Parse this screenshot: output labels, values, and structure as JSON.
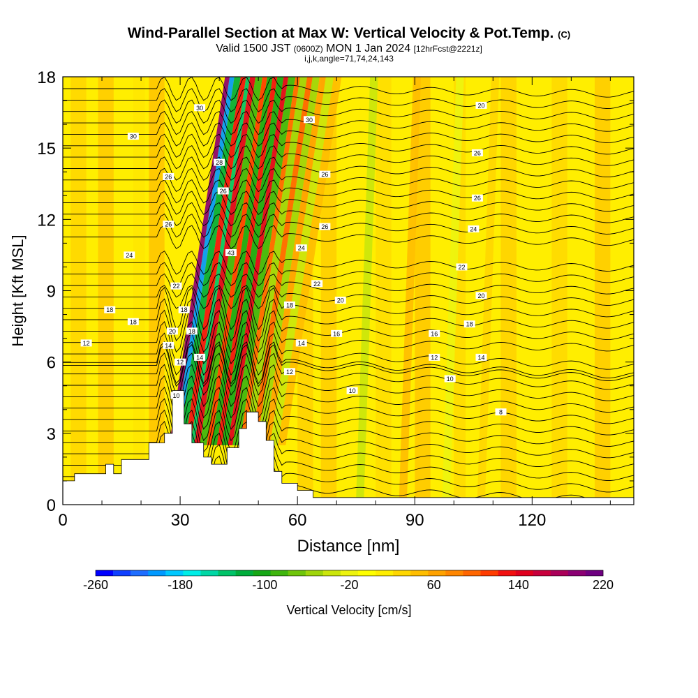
{
  "title": {
    "main": "Wind-Parallel Section at Max W: Vertical Velocity & Pot.Temp.",
    "mark": "(C)",
    "valid_a": "Valid 1500 JST",
    "valid_utc": "(0600Z)",
    "valid_b": "MON 1 Jan 2024",
    "fcst": "[12hrFcst@2221z]",
    "indices": "i,j,k,angle=71,74,24,143"
  },
  "chart_data": {
    "type": "heatmap",
    "xlabel": "Distance [nm]",
    "ylabel": "Height [Kft MSL]",
    "xlim": [
      0,
      146
    ],
    "ylim": [
      0,
      18
    ],
    "xticks": [
      0,
      30,
      60,
      90,
      120
    ],
    "yticks": [
      0,
      3,
      6,
      9,
      12,
      15,
      18
    ],
    "terrain": [
      [
        0,
        1.0
      ],
      [
        3,
        1.0
      ],
      [
        3,
        1.3
      ],
      [
        11,
        1.3
      ],
      [
        11,
        1.7
      ],
      [
        13,
        1.7
      ],
      [
        13,
        1.3
      ],
      [
        15,
        1.3
      ],
      [
        15,
        1.9
      ],
      [
        22,
        1.9
      ],
      [
        22,
        2.6
      ],
      [
        26,
        2.6
      ],
      [
        26,
        3.0
      ],
      [
        28,
        3.0
      ],
      [
        28,
        4.8
      ],
      [
        31,
        4.8
      ],
      [
        31,
        3.4
      ],
      [
        33,
        3.4
      ],
      [
        33,
        2.6
      ],
      [
        36,
        2.6
      ],
      [
        36,
        2.0
      ],
      [
        38,
        2.0
      ],
      [
        38,
        1.7
      ],
      [
        42,
        1.7
      ],
      [
        42,
        2.4
      ],
      [
        45,
        2.4
      ],
      [
        45,
        3.2
      ],
      [
        47,
        3.2
      ],
      [
        47,
        3.9
      ],
      [
        50,
        3.9
      ],
      [
        50,
        3.5
      ],
      [
        52,
        3.5
      ],
      [
        52,
        2.7
      ],
      [
        54,
        2.7
      ],
      [
        54,
        1.4
      ],
      [
        56,
        1.4
      ],
      [
        56,
        0.9
      ],
      [
        60,
        0.9
      ],
      [
        60,
        0.6
      ],
      [
        64,
        0.6
      ],
      [
        64,
        0.3
      ],
      [
        146,
        0.3
      ]
    ],
    "velocity_cells": [
      {
        "x": [
          27.2,
          28.4
        ],
        "w": 195
      },
      {
        "x": [
          28.4,
          29.6
        ],
        "w": -210
      },
      {
        "x": [
          29.6,
          31.2
        ],
        "w": -120
      },
      {
        "x": [
          31.2,
          32.6
        ],
        "w": 135
      },
      {
        "x": [
          32.6,
          33.6
        ],
        "w": -130
      },
      {
        "x": [
          33.6,
          35.0
        ],
        "w": 150
      },
      {
        "x": [
          35.0,
          36.8
        ],
        "w": -90
      },
      {
        "x": [
          36.8,
          38.0
        ],
        "w": 115
      },
      {
        "x": [
          38.0,
          39.4
        ],
        "w": -105
      },
      {
        "x": [
          39.4,
          40.6
        ],
        "w": 130
      },
      {
        "x": [
          40.6,
          42.2
        ],
        "w": -95
      },
      {
        "x": [
          42.2,
          43.4
        ],
        "w": 140
      },
      {
        "x": [
          43.4,
          45.2
        ],
        "w": -80
      },
      {
        "x": [
          45.2,
          46.4
        ],
        "w": 95
      },
      {
        "x": [
          46.4,
          48.2
        ],
        "w": -60
      },
      {
        "x": [
          48.2,
          49.6
        ],
        "w": 90
      },
      {
        "x": [
          49.6,
          51.4
        ],
        "w": -55
      },
      {
        "x": [
          51.4,
          53.0
        ],
        "w": 60
      },
      {
        "x": [
          53.0,
          55.0
        ],
        "w": -30
      },
      {
        "x": [
          55.0,
          57.0
        ],
        "w": 45
      },
      {
        "x": [
          75.0,
          77.0
        ],
        "w": -35
      },
      {
        "x": [
          86.0,
          88.0
        ],
        "w": 45
      },
      {
        "x": [
          97.0,
          99.0
        ],
        "w": -25
      },
      {
        "x": [
          106.0,
          108.0
        ],
        "w": 35
      }
    ],
    "potential_temperature_labels": [
      {
        "x": 18,
        "y": 15.5,
        "t": "30"
      },
      {
        "x": 35,
        "y": 16.7,
        "t": "30"
      },
      {
        "x": 63,
        "y": 16.2,
        "t": "30"
      },
      {
        "x": 107,
        "y": 16.8,
        "t": "20"
      },
      {
        "x": 27,
        "y": 13.8,
        "t": "26"
      },
      {
        "x": 40,
        "y": 14.4,
        "t": "28"
      },
      {
        "x": 67,
        "y": 13.9,
        "t": "26"
      },
      {
        "x": 106,
        "y": 14.8,
        "t": "26"
      },
      {
        "x": 41,
        "y": 13.2,
        "t": "26"
      },
      {
        "x": 106,
        "y": 12.9,
        "t": "26"
      },
      {
        "x": 27,
        "y": 11.8,
        "t": "26"
      },
      {
        "x": 67,
        "y": 11.7,
        "t": "26"
      },
      {
        "x": 105,
        "y": 11.6,
        "t": "24"
      },
      {
        "x": 17,
        "y": 10.5,
        "t": "24"
      },
      {
        "x": 43,
        "y": 10.6,
        "t": "43"
      },
      {
        "x": 61,
        "y": 10.8,
        "t": "24"
      },
      {
        "x": 102,
        "y": 10.0,
        "t": "22"
      },
      {
        "x": 29,
        "y": 9.2,
        "t": "22"
      },
      {
        "x": 65,
        "y": 9.3,
        "t": "22"
      },
      {
        "x": 71,
        "y": 8.6,
        "t": "20"
      },
      {
        "x": 107,
        "y": 8.8,
        "t": "20"
      },
      {
        "x": 12,
        "y": 8.2,
        "t": "18"
      },
      {
        "x": 31,
        "y": 8.2,
        "t": "18"
      },
      {
        "x": 58,
        "y": 8.4,
        "t": "18"
      },
      {
        "x": 18,
        "y": 7.7,
        "t": "18"
      },
      {
        "x": 104,
        "y": 7.6,
        "t": "18"
      },
      {
        "x": 28,
        "y": 7.3,
        "t": "20"
      },
      {
        "x": 33,
        "y": 7.3,
        "t": "18"
      },
      {
        "x": 70,
        "y": 7.2,
        "t": "16"
      },
      {
        "x": 95,
        "y": 7.2,
        "t": "16"
      },
      {
        "x": 6,
        "y": 6.8,
        "t": "12"
      },
      {
        "x": 27,
        "y": 6.7,
        "t": "14"
      },
      {
        "x": 61,
        "y": 6.8,
        "t": "14"
      },
      {
        "x": 35,
        "y": 6.2,
        "t": "14"
      },
      {
        "x": 95,
        "y": 6.2,
        "t": "12"
      },
      {
        "x": 107,
        "y": 6.2,
        "t": "14"
      },
      {
        "x": 30,
        "y": 6.0,
        "t": "12"
      },
      {
        "x": 58,
        "y": 5.6,
        "t": "12"
      },
      {
        "x": 99,
        "y": 5.3,
        "t": "10"
      },
      {
        "x": 74,
        "y": 4.8,
        "t": "10"
      },
      {
        "x": 29,
        "y": 4.6,
        "t": "10"
      },
      {
        "x": 112,
        "y": 3.9,
        "t": "8"
      }
    ],
    "colorbar": {
      "colors": [
        "#0000ff",
        "#0f3fff",
        "#1e6dff",
        "#0099ff",
        "#00c8ff",
        "#00eee7",
        "#00d7a5",
        "#00c368",
        "#00ad3b",
        "#16a716",
        "#3fb50e",
        "#6fc50a",
        "#9fd50a",
        "#cbe60b",
        "#eef40e",
        "#ffff00",
        "#ffee00",
        "#ffd700",
        "#ffbe00",
        "#ffa200",
        "#ff8600",
        "#ff6600",
        "#ff3c00",
        "#f21010",
        "#e0001e",
        "#c8003c",
        "#aa0059",
        "#8b0073",
        "#6e0080"
      ],
      "labels": [
        "-260",
        "-180",
        "-100",
        "-20",
        "60",
        "140",
        "220"
      ],
      "min": -260,
      "max": 220,
      "title": "Vertical Velocity [cm/s]"
    }
  }
}
